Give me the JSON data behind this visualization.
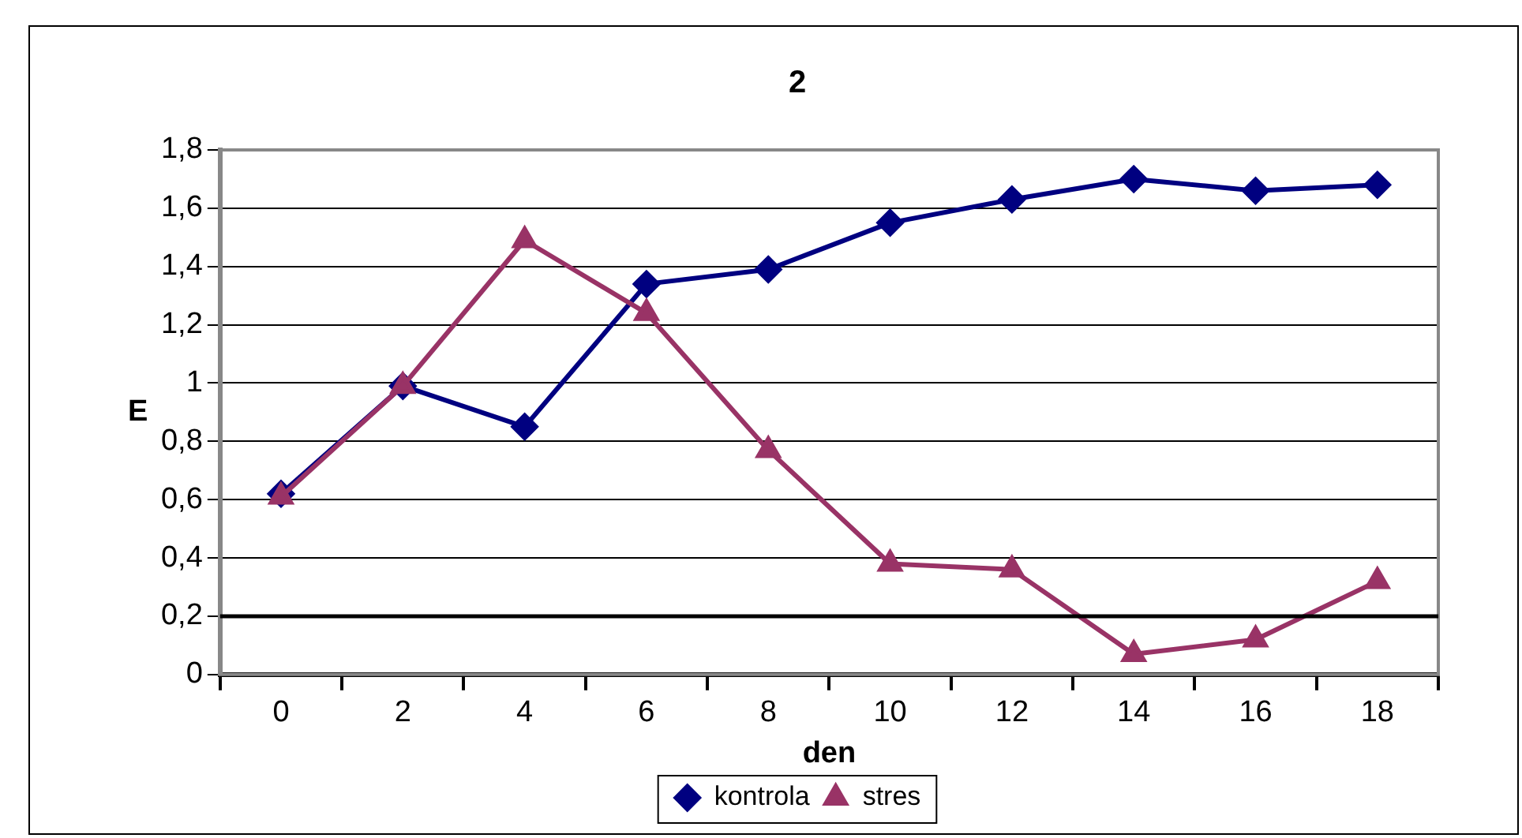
{
  "chart_data": {
    "type": "line",
    "title": "2",
    "xlabel": "den",
    "ylabel": "E",
    "categories": [
      "0",
      "2",
      "4",
      "6",
      "8",
      "10",
      "12",
      "14",
      "16",
      "18"
    ],
    "series": [
      {
        "name": "kontrola",
        "color": "#000080",
        "marker": "diamond",
        "values": [
          0.62,
          0.99,
          0.85,
          1.34,
          1.39,
          1.55,
          1.63,
          1.7,
          1.66,
          1.68
        ]
      },
      {
        "name": "stres",
        "color": "#993366",
        "marker": "triangle",
        "values": [
          0.61,
          0.99,
          1.49,
          1.24,
          0.77,
          0.38,
          0.36,
          0.07,
          0.12,
          0.32
        ]
      }
    ],
    "ylim": [
      0,
      1.8
    ],
    "yticks": [
      0,
      {
        "value": 0.2,
        "label": "0,2"
      },
      {
        "value": 0.4,
        "label": "0,4"
      },
      {
        "value": 0.6,
        "label": "0,6"
      },
      {
        "value": 0.8,
        "label": "0,8"
      },
      1,
      {
        "value": 1.2,
        "label": "1,2"
      },
      {
        "value": 1.4,
        "label": "1,4"
      },
      {
        "value": 1.6,
        "label": "1,6"
      },
      {
        "value": 1.8,
        "label": "1,8"
      }
    ],
    "ref_lines": [
      {
        "axis": "y",
        "value": 0.2,
        "color": "#000000"
      }
    ],
    "grid": "y",
    "legend": "bottom"
  }
}
